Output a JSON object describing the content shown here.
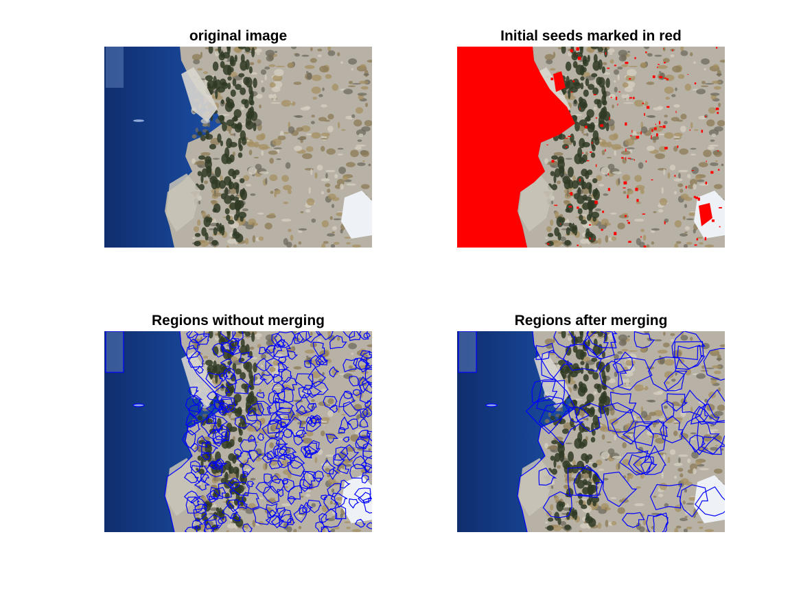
{
  "figure": {
    "panels": [
      {
        "id": "p1",
        "title": "original image",
        "overlay": "none"
      },
      {
        "id": "p2",
        "title": "Initial seeds marked in red",
        "overlay": "seeds",
        "seed_color": "#ff0000"
      },
      {
        "id": "p3",
        "title": "Regions without merging",
        "overlay": "dense-regions",
        "boundary_color": "#0000ff"
      },
      {
        "id": "p4",
        "title": "Regions after merging",
        "overlay": "merged-regions",
        "boundary_color": "#0000ff"
      }
    ]
  },
  "colors": {
    "sky_dark": "#0f2e6e",
    "sky_mid": "#1f56b3",
    "sky_light": "#4a8fe0",
    "rock": "#b8b2a6",
    "rock_dark": "#6e6a5e",
    "trees": "#2f3a24",
    "grass": "#a68f62",
    "snow": "#eef2f6",
    "seed_red": "#ff0000",
    "boundary_blue": "#0000ff"
  }
}
